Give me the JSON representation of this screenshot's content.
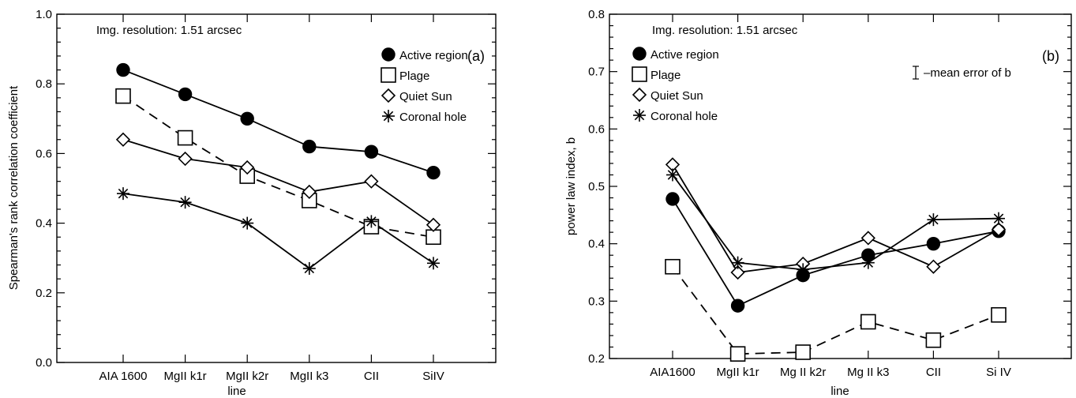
{
  "chart_data": [
    {
      "type": "line",
      "panel_label": "(a)",
      "annotation": "Img. resolution: 1.51 arcsec",
      "xlabel": "line",
      "ylabel": "Spearman's rank correlation coefficient",
      "categories": [
        "AIA 1600",
        "MgII k1r",
        "MgII k2r",
        "MgII k3",
        "CII",
        "SiIV"
      ],
      "ylim": [
        0.0,
        1.0
      ],
      "yticks": [
        "0.0",
        "0.2",
        "0.4",
        "0.6",
        "0.8",
        "1.0"
      ],
      "legend_position": "top-right",
      "series": [
        {
          "name": "Active region",
          "marker": "filled-circle",
          "dash": false,
          "values": [
            0.84,
            0.77,
            0.7,
            0.62,
            0.605,
            0.545
          ]
        },
        {
          "name": "Plage",
          "marker": "open-square",
          "dash": true,
          "values": [
            0.765,
            0.645,
            0.535,
            0.465,
            0.39,
            0.36
          ]
        },
        {
          "name": "Quiet Sun",
          "marker": "open-diamond",
          "dash": false,
          "values": [
            0.64,
            0.585,
            0.56,
            0.49,
            0.52,
            0.395
          ]
        },
        {
          "name": "Coronal hole",
          "marker": "asterisk",
          "dash": false,
          "values": [
            0.485,
            0.46,
            0.4,
            0.27,
            0.405,
            0.285
          ]
        }
      ]
    },
    {
      "type": "line",
      "panel_label": "(b)",
      "annotation": "Img. resolution: 1.51 arcsec",
      "error_note": "–mean error of b",
      "xlabel": "line",
      "ylabel": "power law index, b",
      "categories": [
        "AIA1600",
        "MgII k1r",
        "Mg II k2r",
        "Mg II k3",
        "CII",
        "Si IV"
      ],
      "ylim": [
        0.2,
        0.8
      ],
      "yticks": [
        "0.2",
        "0.3",
        "0.4",
        "0.5",
        "0.6",
        "0.7",
        "0.8"
      ],
      "legend_position": "top-left",
      "series": [
        {
          "name": "Active region",
          "marker": "filled-circle",
          "dash": false,
          "values": [
            0.478,
            0.292,
            0.345,
            0.38,
            0.4,
            0.422
          ]
        },
        {
          "name": "Plage",
          "marker": "open-square",
          "dash": true,
          "values": [
            0.36,
            0.208,
            0.211,
            0.264,
            0.232,
            0.276
          ]
        },
        {
          "name": "Quiet Sun",
          "marker": "open-diamond",
          "dash": false,
          "values": [
            0.538,
            0.35,
            0.365,
            0.41,
            0.36,
            0.425
          ]
        },
        {
          "name": "Coronal hole",
          "marker": "asterisk",
          "dash": false,
          "values": [
            0.52,
            0.367,
            0.355,
            0.367,
            0.442,
            0.444
          ]
        }
      ]
    }
  ]
}
